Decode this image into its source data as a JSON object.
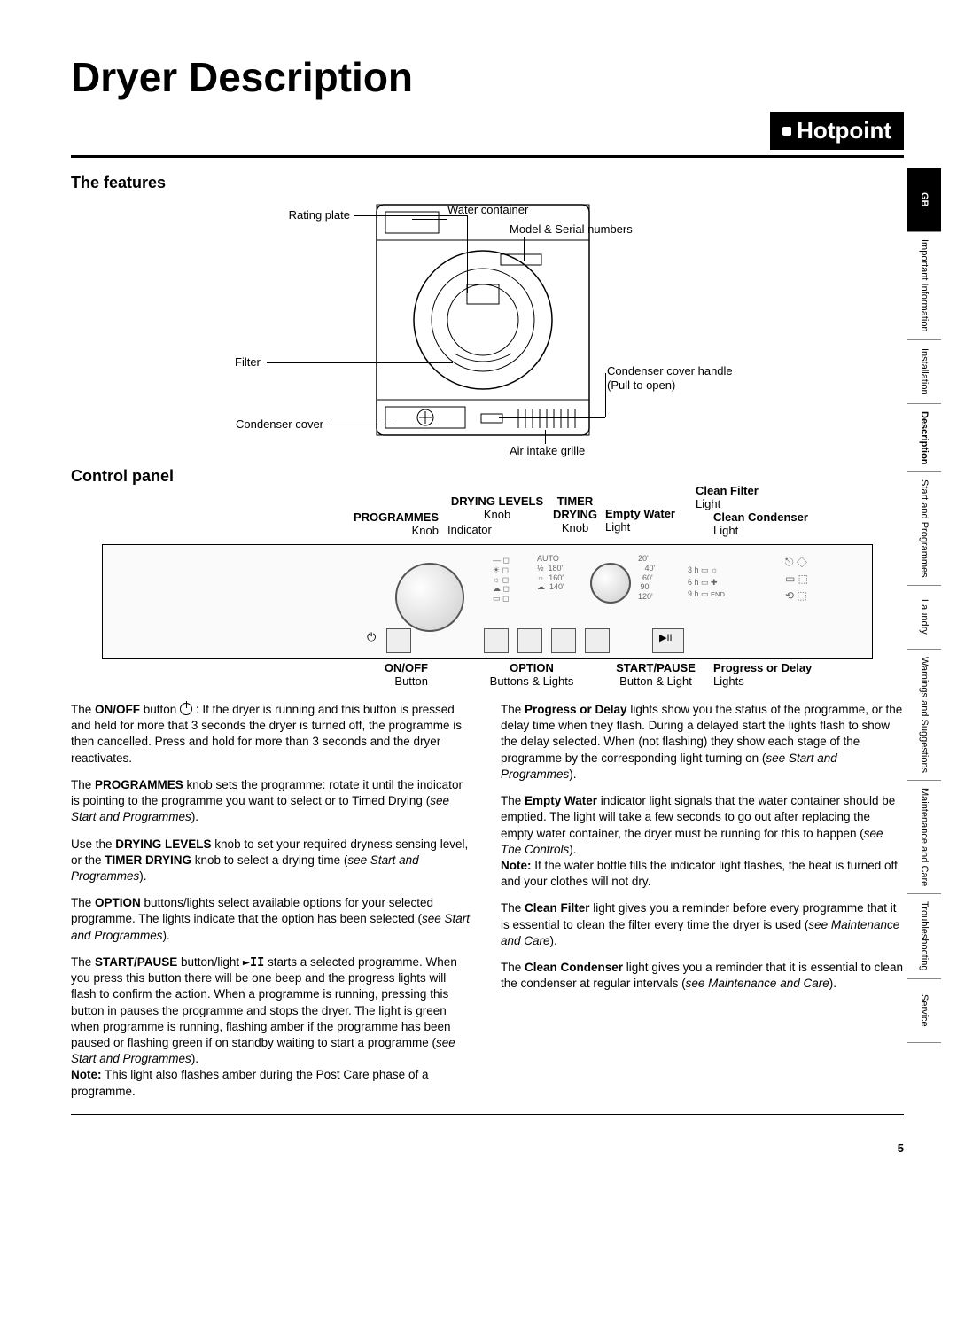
{
  "page": {
    "title": "Dryer Description",
    "brand": "Hotpoint",
    "pageNumber": "5"
  },
  "sideTabs": [
    {
      "label": "GB",
      "active": true
    },
    {
      "label": "Important\nInformation",
      "active": false
    },
    {
      "label": "Installation",
      "active": false
    },
    {
      "label": "Description",
      "active": false,
      "bold": true
    },
    {
      "label": "Start and\nProgrammes",
      "active": false
    },
    {
      "label": "Laundry",
      "active": false
    },
    {
      "label": "Warnings and\nSuggestions",
      "active": false
    },
    {
      "label": "Maintenance\nand Care",
      "active": false
    },
    {
      "label": "Troubleshooting",
      "active": false
    },
    {
      "label": "Service",
      "active": false
    }
  ],
  "features": {
    "heading": "The features",
    "labels": {
      "ratingPlate": "Rating plate",
      "waterContainer": "Water container",
      "modelSerial": "Model & Serial numbers",
      "filter": "Filter",
      "condenserHandle": "Condenser cover handle",
      "pullToOpen": "(Pull to open)",
      "condenserCover": "Condenser cover",
      "airGrille": "Air intake grille"
    }
  },
  "controlPanel": {
    "heading": "Control panel",
    "topLabels": {
      "programmes": "PROGRAMMES",
      "programmesSub": "Knob",
      "dryingLevels": "DRYING LEVELS",
      "dryingLevelsSub": "Knob",
      "indicator": "Indicator",
      "timer": "TIMER",
      "timerDrying": "DRYING",
      "timerSub": "Knob",
      "emptyWater": "Empty Water",
      "emptyWaterSub": "Light",
      "cleanFilter": "Clean Filter",
      "cleanFilterSub": "Light",
      "cleanCondenser": "Clean Condenser",
      "cleanCondenserSub": "Light"
    },
    "bottomLabels": {
      "onoff": "ON/OFF",
      "onoffSub": "Button",
      "option": "OPTION",
      "optionSub": "Buttons & Lights",
      "startPause": "START/PAUSE",
      "startPauseSub": "Button & Light",
      "progress": "Progress or Delay",
      "progressSub": "Lights"
    },
    "panelMarks": {
      "auto": "AUTO",
      "t180": "180'",
      "t160": "160'",
      "t140": "140'",
      "t20": "20'",
      "t40": "40'",
      "t60": "60'",
      "t90": "90'",
      "t120": "120'",
      "d3h": "3 h",
      "d6h": "6 h",
      "d9h": "9 h"
    }
  },
  "bodyText": {
    "left": [
      "The <b>ON/OFF</b> button <span class=\"power-icon\" data-name=\"power-icon\" data-interactable=\"false\"></span> : If the dryer is running and this button is pressed and held for more that 3 seconds the dryer is turned off, the programme is then cancelled. Press and hold for more than 3 seconds and the dryer reactivates.",
      "The <b>PROGRAMMES</b> knob sets the programme: rotate it until the indicator is pointing to the programme you want to select or to Timed Drying (<i>see Start and Programmes</i>).",
      "Use the <b>DRYING LEVELS</b> knob to set your required dryness sensing level, or the <b>TIMER DRYING</b> knob to select a drying time (<i>see Start and Programmes</i>).",
      "The <b>OPTION</b> buttons/lights select available options for your selected programme. The lights indicate that the option has been selected (<i>see Start and Programmes</i>).",
      "The <b>START/PAUSE</b> button/light <span class=\"play-pause\">&#9658;II</span> starts a selected programme. When you press this button there will be one beep and the progress lights will flash to confirm the action. When a programme is running, pressing this button in pauses the programme and stops the dryer. The light is green when programme is running, flashing amber if the programme has been paused or flashing green if on standby waiting to start a programme (<i>see Start and Programmes</i>).<br><b>Note:</b> This light also flashes amber during the Post Care phase of a programme."
    ],
    "right": [
      "The <b>Progress or Delay</b> lights show you the status of the programme, or the delay time when they flash. During a delayed start the lights flash to show the delay selected. When (not flashing) they show each stage of the programme by the corresponding light turning on (<i>see Start and Programmes</i>).",
      "The <b>Empty Water</b> indicator light signals that the water container should be emptied. The light will take a few seconds to go out after replacing the empty water container, the dryer must be running for this to happen (<i>see The Controls</i>).<br><b>Note:</b> If the water bottle fills the indicator light flashes, the heat is turned off and your clothes will not dry.",
      "The <b>Clean Filter</b> light gives you a reminder before every programme that it is essential to clean the filter every time the dryer is used (<i>see Maintenance and Care</i>).",
      "The <b>Clean Condenser</b> light gives you a reminder that it is essential to clean the condenser at regular intervals (<i>see Maintenance and Care</i>)."
    ]
  },
  "colors": {
    "ink": "#000000",
    "panelBg": "#fafafa",
    "knobStroke": "#555555"
  }
}
